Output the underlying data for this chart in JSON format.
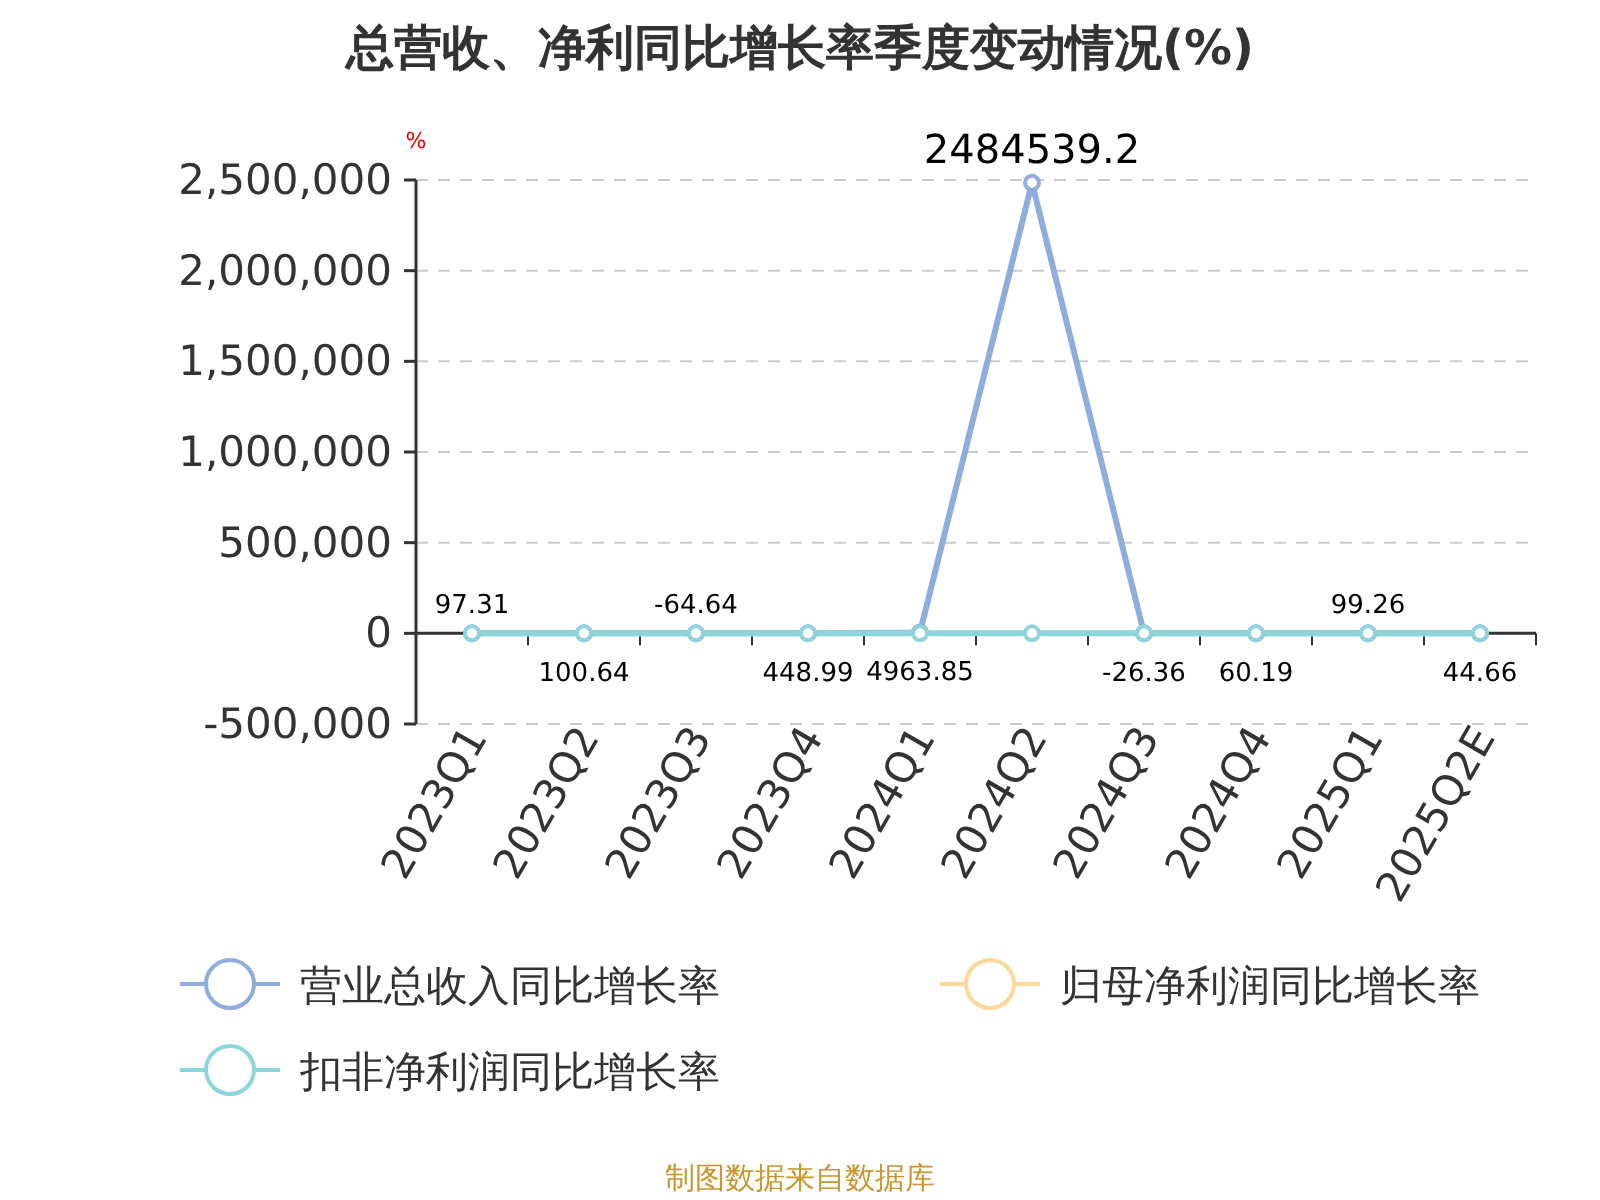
{
  "chart_data": {
    "type": "line",
    "title": "总营收、净利同比增长率季度变动情况(%)",
    "ylabel": "%",
    "categories": [
      "2023Q1",
      "2023Q2",
      "2023Q3",
      "2023Q4",
      "2024Q1",
      "2024Q2",
      "2024Q3",
      "2024Q4",
      "2025Q1",
      "2025Q2E"
    ],
    "series": [
      {
        "name": "营业总收入同比增长率",
        "color": "#8eacdc",
        "values": [
          97.31,
          100.64,
          -64.64,
          448.99,
          4963.85,
          2484539.2,
          -26.36,
          60.19,
          99.26,
          44.66
        ],
        "value_labels": [
          "97.31",
          "100.64",
          "-64.64",
          "448.99",
          "4963.85",
          "2484539.2",
          "-26.36",
          "60.19",
          "99.26",
          "44.66"
        ]
      },
      {
        "name": "归母净利润同比增长率",
        "color": "#fcd99a",
        "values": [
          null,
          null,
          null,
          null,
          null,
          null,
          null,
          null,
          null,
          null
        ]
      },
      {
        "name": "扣非净利润同比增长率",
        "color": "#8dd5da",
        "values": [
          0,
          0,
          0,
          0,
          0,
          0,
          0,
          0,
          0,
          0
        ]
      }
    ],
    "ylim": [
      -500000,
      2500000
    ],
    "yticks": [
      {
        "value": -500000,
        "label": "-500,000"
      },
      {
        "value": 0,
        "label": "0"
      },
      {
        "value": 500000,
        "label": "500,000"
      },
      {
        "value": 1000000,
        "label": "1,000,000"
      },
      {
        "value": 1500000,
        "label": "1,500,000"
      },
      {
        "value": 2000000,
        "label": "2,000,000"
      },
      {
        "value": 2500000,
        "label": "2,500,000"
      }
    ],
    "grid": "y",
    "marker": "circle",
    "line_style": "solid",
    "legend": "bottom",
    "annotations": [
      "制图数据来自数据库"
    ]
  }
}
